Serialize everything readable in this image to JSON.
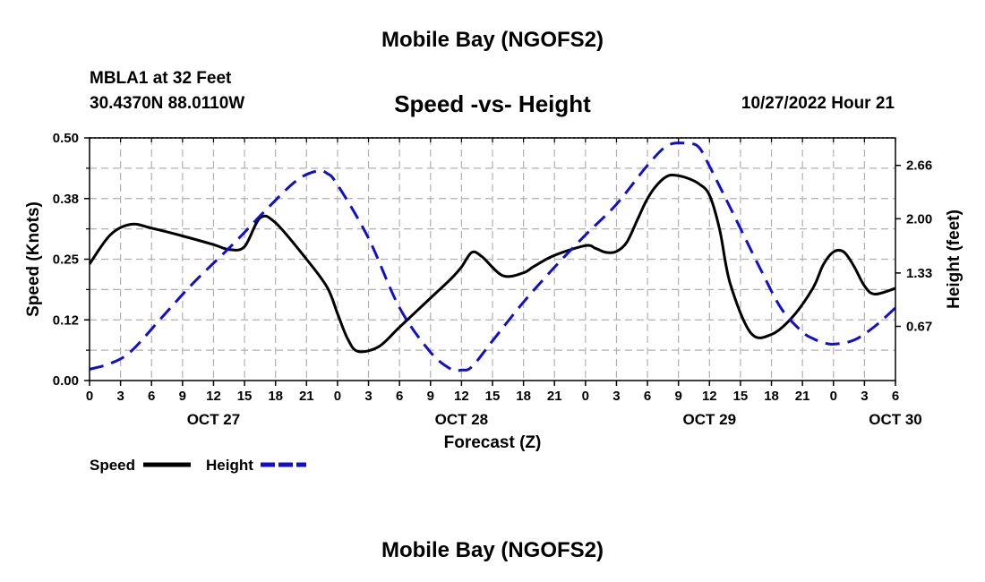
{
  "header": {
    "title": "Mobile Bay (NGOFS2)",
    "station": "MBLA1 at 32 Feet",
    "coords": "30.4370N  88.0110W",
    "subtitle": "Speed -vs- Height",
    "timestamp": "10/27/2022 Hour 21"
  },
  "footer": {
    "title": "Mobile Bay (NGOFS2)"
  },
  "colors": {
    "speed": "#000000",
    "height": "#1010cc",
    "grid": "#b0b0b0"
  },
  "chart_data": {
    "type": "line",
    "title": "Speed -vs- Height",
    "xlabel": "Forecast (Z)",
    "ylabel": "Speed (Knots)",
    "y2label": "Height (feet)",
    "x_tick_labels": [
      "0",
      "3",
      "6",
      "9",
      "12",
      "15",
      "18",
      "21",
      "0",
      "3",
      "6",
      "9",
      "12",
      "15",
      "18",
      "21",
      "0",
      "3",
      "6",
      "9",
      "12",
      "15",
      "18",
      "21",
      "0",
      "3",
      "6"
    ],
    "date_labels": [
      {
        "label": "OCT 27",
        "hour": 12
      },
      {
        "label": "OCT 28",
        "hour": 36
      },
      {
        "label": "OCT 29",
        "hour": 60
      },
      {
        "label": "OCT 30",
        "hour": 78
      }
    ],
    "xlim": [
      0,
      78
    ],
    "ylim": [
      0,
      0.5
    ],
    "y_ticks": [
      "0.00",
      "0.12",
      "0.25",
      "0.38",
      "0.50"
    ],
    "y2lim": [
      0,
      3
    ],
    "y2_ticks": [
      {
        "label": "0.67",
        "value": 0.67
      },
      {
        "label": "1.33",
        "value": 1.33
      },
      {
        "label": "2.00",
        "value": 2.0
      },
      {
        "label": "2.66",
        "value": 2.66
      }
    ],
    "grid": true,
    "legend": {
      "position": "bottom-left"
    },
    "series": [
      {
        "name": "Speed",
        "axis": "left",
        "style": "solid",
        "x": [
          0,
          2,
          4,
          6,
          9,
          12,
          13.5,
          15,
          16.5,
          18,
          21,
          23,
          24,
          25,
          26,
          28,
          30,
          33,
          35,
          36,
          37,
          38,
          40,
          42,
          43,
          45,
          48,
          49,
          50,
          51,
          52,
          53,
          54,
          55,
          56,
          57,
          58,
          59,
          60,
          61,
          62,
          64,
          66,
          68,
          70,
          71,
          72,
          73,
          74,
          75,
          76,
          78
        ],
        "values": [
          0.24,
          0.3,
          0.322,
          0.314,
          0.298,
          0.28,
          0.27,
          0.276,
          0.335,
          0.325,
          0.25,
          0.192,
          0.138,
          0.085,
          0.06,
          0.07,
          0.11,
          0.17,
          0.21,
          0.234,
          0.264,
          0.255,
          0.216,
          0.222,
          0.235,
          0.258,
          0.278,
          0.272,
          0.264,
          0.266,
          0.285,
          0.33,
          0.375,
          0.405,
          0.422,
          0.422,
          0.416,
          0.405,
          0.382,
          0.31,
          0.2,
          0.098,
          0.095,
          0.13,
          0.19,
          0.238,
          0.265,
          0.265,
          0.235,
          0.195,
          0.178,
          0.19
        ]
      },
      {
        "name": "Height",
        "axis": "right",
        "style": "dashed",
        "x": [
          0,
          2,
          4,
          7,
          10,
          14,
          17,
          20,
          22,
          23,
          24,
          27,
          30,
          33,
          35,
          36,
          37,
          39,
          42,
          45,
          48,
          51,
          54,
          56,
          58,
          59,
          60,
          62,
          65,
          67,
          69,
          70,
          71,
          72,
          74,
          76,
          78
        ],
        "values": [
          0.14,
          0.21,
          0.36,
          0.78,
          1.2,
          1.7,
          2.1,
          2.47,
          2.59,
          2.56,
          2.42,
          1.76,
          0.9,
          0.35,
          0.14,
          0.13,
          0.17,
          0.49,
          0.97,
          1.4,
          1.8,
          2.18,
          2.66,
          2.91,
          2.93,
          2.88,
          2.65,
          2.14,
          1.36,
          0.88,
          0.6,
          0.52,
          0.47,
          0.45,
          0.5,
          0.67,
          0.9
        ]
      }
    ]
  }
}
